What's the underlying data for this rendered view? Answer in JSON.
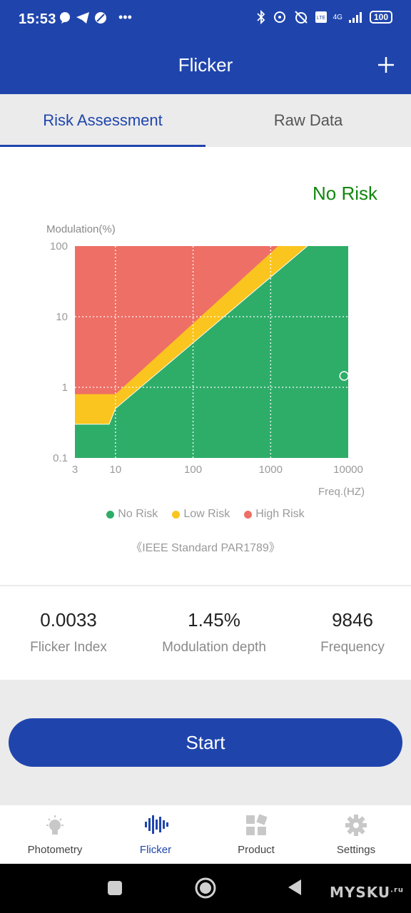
{
  "status_bar": {
    "time": "15:53",
    "battery": "100",
    "network": "4G"
  },
  "app_bar": {
    "title": "Flicker",
    "add_icon": "plus-icon"
  },
  "tabs": [
    {
      "label": "Risk Assessment",
      "active": true
    },
    {
      "label": "Raw Data",
      "active": false
    }
  ],
  "risk": {
    "label": "No Risk",
    "color": "#13860f"
  },
  "chart_data": {
    "type": "area",
    "ylabel": "Modulation(%)",
    "xlabel": "Freq.(HZ)",
    "x_scale": "log",
    "y_scale": "log",
    "x_ticks": [
      "3",
      "10",
      "100",
      "1000",
      "10000"
    ],
    "y_ticks": [
      "100",
      "10",
      "1",
      "0.1"
    ],
    "xlim": [
      3,
      10000
    ],
    "ylim": [
      0.1,
      100
    ],
    "grid": true,
    "series": [
      {
        "name": "No Risk",
        "color": "#2ead69",
        "boundary": [
          [
            3,
            0.3
          ],
          [
            8.3,
            0.3
          ],
          [
            10,
            0.5
          ],
          [
            2977,
            100
          ]
        ]
      },
      {
        "name": "Low Risk",
        "color": "#fbc51f",
        "boundary": [
          [
            3,
            0.8
          ],
          [
            10,
            0.8
          ],
          [
            1250,
            100
          ]
        ]
      },
      {
        "name": "High Risk",
        "color": "#ee6f65"
      }
    ],
    "measurement": {
      "frequency": 9846,
      "modulation": 1.45
    },
    "standard": "《IEEE Standard PAR1789》"
  },
  "metrics": [
    {
      "value": "0.0033",
      "label": "Flicker Index"
    },
    {
      "value": "1.45%",
      "label": "Modulation depth"
    },
    {
      "value": "9846",
      "label": "Frequency"
    }
  ],
  "start_button": {
    "label": "Start"
  },
  "bottom_nav": [
    {
      "label": "Photometry",
      "icon": "lightbulb-icon",
      "active": false
    },
    {
      "label": "Flicker",
      "icon": "waveform-icon",
      "active": true
    },
    {
      "label": "Product",
      "icon": "grid-icon",
      "active": false
    },
    {
      "label": "Settings",
      "icon": "gear-icon",
      "active": false
    }
  ],
  "watermark": {
    "text": "MYSKU",
    "suffix": ".ru"
  }
}
